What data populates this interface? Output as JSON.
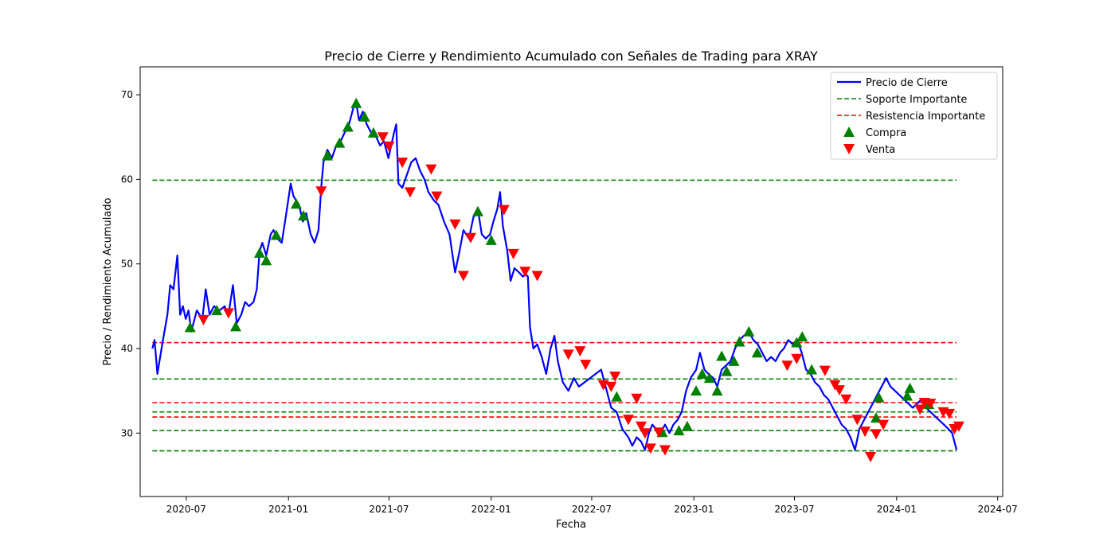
{
  "chart_data": {
    "type": "line",
    "title": "Precio de Cierre y Rendimiento Acumulado con Señales de Trading para XRAY",
    "xlabel": "Fecha",
    "ylabel": "Precio / Rendimiento Acumulado",
    "xlim": [
      "2020-04-09",
      "2024-07-10"
    ],
    "ylim": [
      22.5,
      73.3
    ],
    "x_ticks": [
      "2020-07",
      "2021-01",
      "2021-07",
      "2022-01",
      "2022-07",
      "2023-01",
      "2023-07",
      "2024-01",
      "2024-07"
    ],
    "y_ticks": [
      30,
      40,
      50,
      60,
      70
    ],
    "grid": false,
    "legend_position": "top-right",
    "colors": {
      "price": "#0000ff",
      "support": "#008000",
      "resistance": "#ff0000",
      "buy": "#008000",
      "sell": "#ff0000"
    },
    "legend": [
      {
        "label": "Precio de Cierre",
        "kind": "line",
        "color": "#0000ff"
      },
      {
        "label": "Soporte Importante",
        "kind": "dashed",
        "color": "#008000"
      },
      {
        "label": "Resistencia Importante",
        "kind": "dashed",
        "color": "#ff0000"
      },
      {
        "label": "Compra",
        "kind": "triangle-up",
        "color": "#008000"
      },
      {
        "label": "Venta",
        "kind": "triangle-down",
        "color": "#ff0000"
      }
    ],
    "series": [
      {
        "name": "Precio de Cierre",
        "points": [
          [
            "2020-05-01",
            40.0
          ],
          [
            "2020-05-05",
            41.0
          ],
          [
            "2020-05-10",
            37.0
          ],
          [
            "2020-05-20",
            41.0
          ],
          [
            "2020-05-28",
            44.0
          ],
          [
            "2020-06-02",
            47.5
          ],
          [
            "2020-06-08",
            47.0
          ],
          [
            "2020-06-15",
            51.0
          ],
          [
            "2020-06-20",
            44.0
          ],
          [
            "2020-06-25",
            45.0
          ],
          [
            "2020-06-30",
            43.5
          ],
          [
            "2020-07-05",
            44.5
          ],
          [
            "2020-07-10",
            42.0
          ],
          [
            "2020-07-20",
            44.5
          ],
          [
            "2020-07-30",
            43.5
          ],
          [
            "2020-08-05",
            47.0
          ],
          [
            "2020-08-12",
            44.0
          ],
          [
            "2020-08-20",
            45.0
          ],
          [
            "2020-08-30",
            44.5
          ],
          [
            "2020-09-08",
            45.0
          ],
          [
            "2020-09-15",
            44.0
          ],
          [
            "2020-09-23",
            47.5
          ],
          [
            "2020-09-30",
            43.0
          ],
          [
            "2020-10-08",
            44.0
          ],
          [
            "2020-10-15",
            45.5
          ],
          [
            "2020-10-22",
            45.0
          ],
          [
            "2020-10-30",
            45.5
          ],
          [
            "2020-11-05",
            47.0
          ],
          [
            "2020-11-10",
            51.5
          ],
          [
            "2020-11-15",
            52.5
          ],
          [
            "2020-11-22",
            51.0
          ],
          [
            "2020-11-30",
            53.5
          ],
          [
            "2020-12-05",
            54.0
          ],
          [
            "2020-12-12",
            53.0
          ],
          [
            "2020-12-20",
            52.5
          ],
          [
            "2020-12-27",
            55.5
          ],
          [
            "2021-01-05",
            59.5
          ],
          [
            "2021-01-10",
            58.0
          ],
          [
            "2021-01-20",
            57.0
          ],
          [
            "2021-01-27",
            55.0
          ],
          [
            "2021-02-02",
            56.0
          ],
          [
            "2021-02-10",
            53.5
          ],
          [
            "2021-02-17",
            52.5
          ],
          [
            "2021-02-24",
            54.0
          ],
          [
            "2021-03-01",
            59.0
          ],
          [
            "2021-03-05",
            62.0
          ],
          [
            "2021-03-12",
            63.5
          ],
          [
            "2021-03-20",
            62.5
          ],
          [
            "2021-03-28",
            64.0
          ],
          [
            "2021-04-05",
            64.5
          ],
          [
            "2021-04-12",
            65.5
          ],
          [
            "2021-04-20",
            66.5
          ],
          [
            "2021-04-28",
            68.5
          ],
          [
            "2021-05-03",
            69.0
          ],
          [
            "2021-05-08",
            67.0
          ],
          [
            "2021-05-15",
            68.0
          ],
          [
            "2021-05-22",
            66.5
          ],
          [
            "2021-05-30",
            65.5
          ],
          [
            "2021-06-08",
            65.0
          ],
          [
            "2021-06-15",
            64.0
          ],
          [
            "2021-06-22",
            64.5
          ],
          [
            "2021-06-30",
            62.5
          ],
          [
            "2021-07-10",
            65.5
          ],
          [
            "2021-07-14",
            66.5
          ],
          [
            "2021-07-18",
            59.5
          ],
          [
            "2021-07-25",
            59.0
          ],
          [
            "2021-08-02",
            60.5
          ],
          [
            "2021-08-10",
            62.0
          ],
          [
            "2021-08-18",
            62.5
          ],
          [
            "2021-08-26",
            61.0
          ],
          [
            "2021-09-03",
            60.0
          ],
          [
            "2021-09-10",
            58.5
          ],
          [
            "2021-09-20",
            57.5
          ],
          [
            "2021-09-28",
            57.0
          ],
          [
            "2021-10-08",
            55.0
          ],
          [
            "2021-10-18",
            53.5
          ],
          [
            "2021-10-28",
            49.0
          ],
          [
            "2021-11-05",
            51.5
          ],
          [
            "2021-11-12",
            54.0
          ],
          [
            "2021-11-22",
            53.0
          ],
          [
            "2021-11-30",
            55.5
          ],
          [
            "2021-12-08",
            56.5
          ],
          [
            "2021-12-15",
            53.5
          ],
          [
            "2021-12-22",
            53.0
          ],
          [
            "2021-12-30",
            53.5
          ],
          [
            "2022-01-05",
            55.0
          ],
          [
            "2022-01-12",
            56.5
          ],
          [
            "2022-01-17",
            58.5
          ],
          [
            "2022-01-22",
            54.5
          ],
          [
            "2022-01-30",
            51.5
          ],
          [
            "2022-02-05",
            48.0
          ],
          [
            "2022-02-12",
            49.5
          ],
          [
            "2022-02-20",
            49.0
          ],
          [
            "2022-02-27",
            48.5
          ],
          [
            "2022-03-04",
            48.8
          ],
          [
            "2022-03-08",
            48.5
          ],
          [
            "2022-03-12",
            42.5
          ],
          [
            "2022-03-18",
            40.0
          ],
          [
            "2022-03-25",
            40.5
          ],
          [
            "2022-04-02",
            39.0
          ],
          [
            "2022-04-10",
            37.0
          ],
          [
            "2022-04-18",
            40.0
          ],
          [
            "2022-04-25",
            41.5
          ],
          [
            "2022-05-01",
            38.5
          ],
          [
            "2022-05-10",
            36.0
          ],
          [
            "2022-05-20",
            35.0
          ],
          [
            "2022-05-30",
            36.5
          ],
          [
            "2022-06-08",
            35.5
          ],
          [
            "2022-06-18",
            36.0
          ],
          [
            "2022-06-28",
            36.5
          ],
          [
            "2022-07-08",
            37.0
          ],
          [
            "2022-07-18",
            37.5
          ],
          [
            "2022-07-28",
            35.0
          ],
          [
            "2022-08-05",
            33.0
          ],
          [
            "2022-08-15",
            32.5
          ],
          [
            "2022-08-25",
            30.5
          ],
          [
            "2022-09-05",
            29.5
          ],
          [
            "2022-09-12",
            28.5
          ],
          [
            "2022-09-20",
            29.5
          ],
          [
            "2022-09-28",
            29.0
          ],
          [
            "2022-10-05",
            28.0
          ],
          [
            "2022-10-12",
            30.0
          ],
          [
            "2022-10-18",
            31.0
          ],
          [
            "2022-10-25",
            30.5
          ],
          [
            "2022-11-02",
            30.0
          ],
          [
            "2022-11-10",
            31.0
          ],
          [
            "2022-11-18",
            30.0
          ],
          [
            "2022-11-25",
            31.0
          ],
          [
            "2022-12-02",
            31.5
          ],
          [
            "2022-12-10",
            32.5
          ],
          [
            "2022-12-18",
            35.0
          ],
          [
            "2022-12-26",
            36.5
          ],
          [
            "2023-01-05",
            37.5
          ],
          [
            "2023-01-12",
            39.5
          ],
          [
            "2023-01-20",
            37.5
          ],
          [
            "2023-01-27",
            37.0
          ],
          [
            "2023-02-05",
            36.5
          ],
          [
            "2023-02-12",
            35.5
          ],
          [
            "2023-02-20",
            37.5
          ],
          [
            "2023-02-28",
            38.0
          ],
          [
            "2023-03-08",
            38.5
          ],
          [
            "2023-03-16",
            40.0
          ],
          [
            "2023-03-24",
            41.0
          ],
          [
            "2023-04-01",
            41.5
          ],
          [
            "2023-04-10",
            42.0
          ],
          [
            "2023-04-18",
            41.0
          ],
          [
            "2023-04-26",
            40.5
          ],
          [
            "2023-05-04",
            39.5
          ],
          [
            "2023-05-12",
            38.5
          ],
          [
            "2023-05-20",
            39.0
          ],
          [
            "2023-05-28",
            38.5
          ],
          [
            "2023-06-05",
            39.5
          ],
          [
            "2023-06-12",
            40.0
          ],
          [
            "2023-06-20",
            41.0
          ],
          [
            "2023-06-28",
            40.5
          ],
          [
            "2023-07-06",
            41.0
          ],
          [
            "2023-07-14",
            39.5
          ],
          [
            "2023-07-22",
            37.5
          ],
          [
            "2023-07-30",
            37.0
          ],
          [
            "2023-08-07",
            36.0
          ],
          [
            "2023-08-15",
            35.5
          ],
          [
            "2023-08-23",
            34.5
          ],
          [
            "2023-08-31",
            34.0
          ],
          [
            "2023-09-08",
            33.0
          ],
          [
            "2023-09-16",
            32.0
          ],
          [
            "2023-09-24",
            31.0
          ],
          [
            "2023-10-02",
            30.5
          ],
          [
            "2023-10-10",
            29.5
          ],
          [
            "2023-10-18",
            28.0
          ],
          [
            "2023-10-26",
            30.5
          ],
          [
            "2023-11-03",
            31.5
          ],
          [
            "2023-11-11",
            32.5
          ],
          [
            "2023-11-19",
            33.5
          ],
          [
            "2023-11-27",
            34.5
          ],
          [
            "2023-12-05",
            35.5
          ],
          [
            "2023-12-13",
            36.5
          ],
          [
            "2023-12-21",
            35.5
          ],
          [
            "2023-12-29",
            35.0
          ],
          [
            "2024-01-06",
            34.5
          ],
          [
            "2024-01-14",
            34.0
          ],
          [
            "2024-01-22",
            33.5
          ],
          [
            "2024-01-30",
            33.0
          ],
          [
            "2024-02-07",
            33.5
          ],
          [
            "2024-02-15",
            34.0
          ],
          [
            "2024-02-23",
            33.0
          ],
          [
            "2024-03-02",
            32.5
          ],
          [
            "2024-03-10",
            32.0
          ],
          [
            "2024-03-18",
            31.5
          ],
          [
            "2024-03-26",
            31.0
          ],
          [
            "2024-04-03",
            30.5
          ],
          [
            "2024-04-10",
            30.0
          ],
          [
            "2024-04-18",
            28.0
          ]
        ]
      }
    ],
    "support_levels": [
      59.9,
      36.4,
      32.5,
      30.3,
      27.9
    ],
    "resistance_levels": [
      40.7,
      33.6,
      31.9
    ],
    "line_range": [
      "2020-05-01",
      "2024-04-18"
    ],
    "buy_signals": [
      [
        "2020-07-08",
        42.5
      ],
      [
        "2020-08-25",
        44.5
      ],
      [
        "2020-09-28",
        42.6
      ],
      [
        "2020-11-10",
        51.3
      ],
      [
        "2020-11-22",
        50.4
      ],
      [
        "2020-12-10",
        53.4
      ],
      [
        "2021-01-15",
        57.1
      ],
      [
        "2021-01-28",
        55.7
      ],
      [
        "2021-03-12",
        62.8
      ],
      [
        "2021-04-03",
        64.3
      ],
      [
        "2021-04-18",
        66.2
      ],
      [
        "2021-05-03",
        69.0
      ],
      [
        "2021-05-18",
        67.4
      ],
      [
        "2021-06-03",
        65.5
      ],
      [
        "2021-12-08",
        56.2
      ],
      [
        "2022-01-01",
        52.8
      ],
      [
        "2022-08-15",
        34.3
      ],
      [
        "2022-11-05",
        30.1
      ],
      [
        "2022-12-05",
        30.3
      ],
      [
        "2022-12-20",
        30.8
      ],
      [
        "2023-01-05",
        35.0
      ],
      [
        "2023-01-16",
        37.0
      ],
      [
        "2023-01-29",
        36.5
      ],
      [
        "2023-02-12",
        35.0
      ],
      [
        "2023-02-20",
        39.1
      ],
      [
        "2023-03-01",
        37.3
      ],
      [
        "2023-03-14",
        38.5
      ],
      [
        "2023-03-24",
        40.8
      ],
      [
        "2023-04-10",
        42.0
      ],
      [
        "2023-04-25",
        39.5
      ],
      [
        "2023-07-05",
        40.7
      ],
      [
        "2023-07-15",
        41.4
      ],
      [
        "2023-08-01",
        37.5
      ],
      [
        "2023-11-30",
        34.2
      ],
      [
        "2023-11-25",
        31.8
      ],
      [
        "2024-01-20",
        34.4
      ],
      [
        "2024-01-25",
        35.3
      ],
      [
        "2024-02-28",
        33.4
      ]
    ],
    "sell_signals": [
      [
        "2020-08-01",
        43.4
      ],
      [
        "2020-09-15",
        44.2
      ],
      [
        "2021-03-01",
        58.6
      ],
      [
        "2021-06-20",
        65.0
      ],
      [
        "2021-07-01",
        63.9
      ],
      [
        "2021-07-25",
        62.0
      ],
      [
        "2021-08-08",
        58.5
      ],
      [
        "2021-09-15",
        61.2
      ],
      [
        "2021-09-25",
        58.0
      ],
      [
        "2021-10-28",
        54.7
      ],
      [
        "2021-11-12",
        48.6
      ],
      [
        "2021-11-25",
        53.1
      ],
      [
        "2022-01-24",
        56.4
      ],
      [
        "2022-02-10",
        51.2
      ],
      [
        "2022-03-03",
        49.1
      ],
      [
        "2022-03-25",
        48.6
      ],
      [
        "2022-05-20",
        39.3
      ],
      [
        "2022-06-10",
        39.7
      ],
      [
        "2022-06-20",
        38.1
      ],
      [
        "2022-07-22",
        35.7
      ],
      [
        "2022-08-05",
        35.5
      ],
      [
        "2022-08-12",
        36.7
      ],
      [
        "2022-09-05",
        31.6
      ],
      [
        "2022-09-20",
        34.1
      ],
      [
        "2022-09-28",
        30.8
      ],
      [
        "2022-10-05",
        30.0
      ],
      [
        "2022-10-15",
        28.2
      ],
      [
        "2022-10-30",
        30.1
      ],
      [
        "2022-11-10",
        28.0
      ],
      [
        "2023-06-18",
        38.0
      ],
      [
        "2023-07-05",
        38.8
      ],
      [
        "2023-08-25",
        37.4
      ],
      [
        "2023-09-12",
        35.7
      ],
      [
        "2023-09-20",
        35.1
      ],
      [
        "2023-10-02",
        34.0
      ],
      [
        "2023-10-22",
        31.6
      ],
      [
        "2023-11-05",
        30.2
      ],
      [
        "2023-11-15",
        27.2
      ],
      [
        "2023-11-25",
        29.9
      ],
      [
        "2023-12-08",
        31.0
      ],
      [
        "2024-02-12",
        32.8
      ],
      [
        "2024-02-20",
        33.6
      ],
      [
        "2024-03-02",
        33.5
      ],
      [
        "2024-03-25",
        32.5
      ],
      [
        "2024-04-05",
        32.3
      ],
      [
        "2024-04-14",
        30.5
      ],
      [
        "2024-04-22",
        30.8
      ]
    ]
  }
}
